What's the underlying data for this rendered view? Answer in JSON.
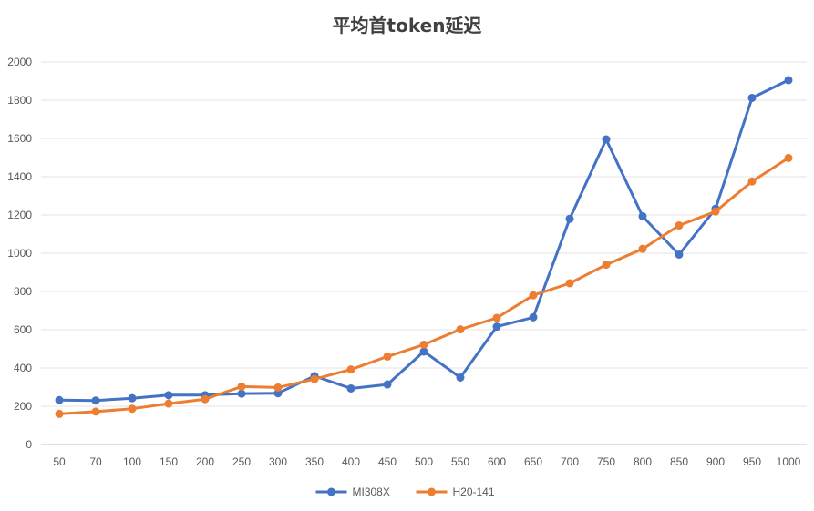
{
  "chart_data": {
    "type": "line",
    "title": "平均首token延迟",
    "xlabel": "",
    "ylabel": "",
    "categories": [
      "50",
      "70",
      "100",
      "150",
      "200",
      "250",
      "300",
      "350",
      "400",
      "450",
      "500",
      "550",
      "600",
      "650",
      "700",
      "750",
      "800",
      "850",
      "900",
      "950",
      "1000"
    ],
    "ylim": [
      0,
      2000
    ],
    "yticks": [
      0,
      200,
      400,
      600,
      800,
      1000,
      1200,
      1400,
      1600,
      1800,
      2000
    ],
    "grid": true,
    "legend_position": "bottom",
    "series": [
      {
        "name": "MI308X",
        "color": "#4472C4",
        "values": [
          232,
          230,
          242,
          258,
          258,
          266,
          268,
          358,
          293,
          314,
          486,
          350,
          616,
          665,
          1180,
          1595,
          1193,
          993,
          1233,
          1812,
          1905
        ]
      },
      {
        "name": "H20-141",
        "color": "#ED7D31",
        "values": [
          160,
          172,
          187,
          214,
          237,
          303,
          298,
          342,
          392,
          460,
          522,
          602,
          662,
          780,
          843,
          940,
          1023,
          1145,
          1218,
          1375,
          1498
        ]
      }
    ]
  }
}
